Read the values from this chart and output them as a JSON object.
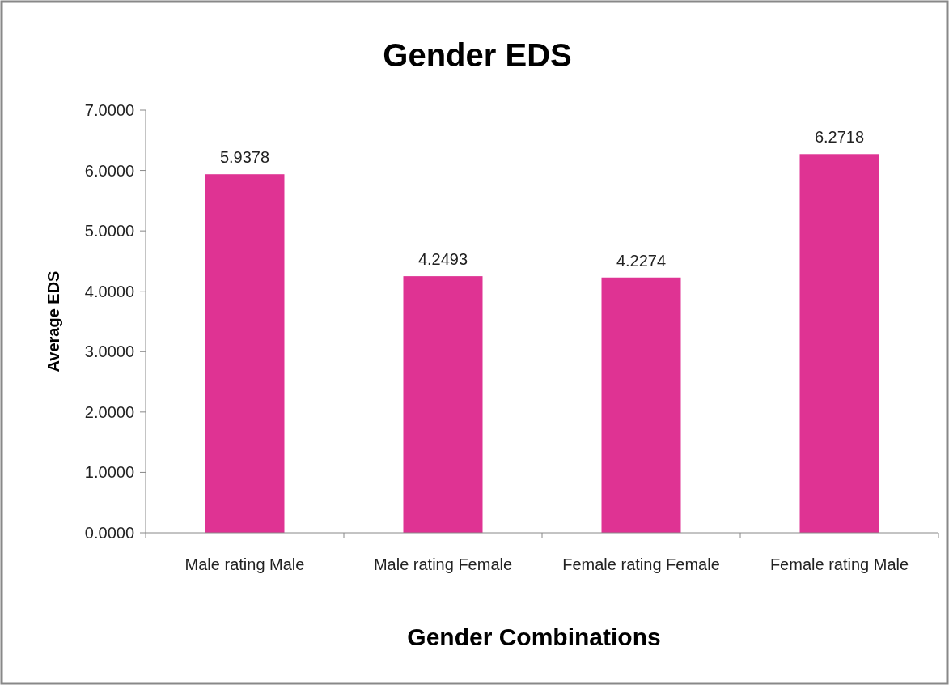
{
  "chart_data": {
    "type": "bar",
    "title": "Gender EDS",
    "xlabel": "Gender Combinations",
    "ylabel": "Average EDS",
    "categories": [
      "Male rating Male",
      "Male rating Female",
      "Female rating Female",
      "Female rating Male"
    ],
    "values": [
      5.9378,
      4.2493,
      4.2274,
      6.2718
    ],
    "color": "#df3393",
    "ylim": [
      0,
      7
    ],
    "yticks": [
      {
        "value": 0,
        "label": "0.0000"
      },
      {
        "value": 1,
        "label": "1.0000"
      },
      {
        "value": 2,
        "label": "2.0000"
      },
      {
        "value": 3,
        "label": "3.0000"
      },
      {
        "value": 4,
        "label": "4.0000"
      },
      {
        "value": 5,
        "label": "5.0000"
      },
      {
        "value": 6,
        "label": "6.0000"
      },
      {
        "value": 7,
        "label": "7.0000"
      }
    ],
    "data_labels": true,
    "grid": false
  }
}
